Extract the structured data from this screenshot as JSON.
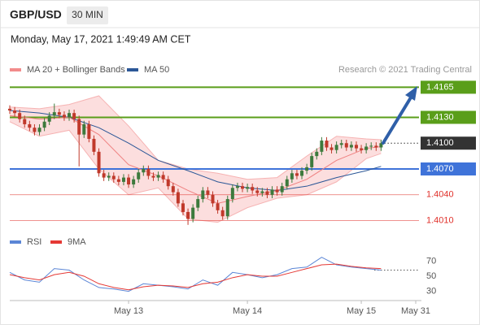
{
  "header": {
    "symbol": "GBP/USD",
    "timeframe": "30 MIN",
    "timestamp": "Monday, May 17, 2021 1:49:49 AM CET",
    "credit": "Research © 2021 Trading Central"
  },
  "chart_data": [
    {
      "type": "candlestick",
      "legend": [
        {
          "label": "MA 20 + Bollinger Bands",
          "color": "#f28b8b"
        },
        {
          "label": "MA 50",
          "color": "#2b5797"
        }
      ],
      "up_color": "#3d7a3d",
      "down_color": "#c0392b",
      "xlim": [
        0,
        82
      ],
      "xticks": [
        {
          "value": 24,
          "label": "May 13"
        },
        {
          "value": 48,
          "label": "May 14"
        },
        {
          "value": 71,
          "label": "May 15"
        },
        {
          "value": 82,
          "label": "May 31"
        }
      ],
      "ylim": [
        1.4002,
        1.4172
      ],
      "open": [
        1.414,
        1.4138,
        1.4135,
        1.4128,
        1.4122,
        1.4118,
        1.4113,
        1.4118,
        1.4125,
        1.4132,
        1.4136,
        1.4133,
        1.413,
        1.4135,
        1.4128,
        1.411,
        1.4122,
        1.4105,
        1.409,
        1.4065,
        1.406,
        1.4062,
        1.4058,
        1.4055,
        1.406,
        1.4052,
        1.4058,
        1.4066,
        1.407,
        1.4062,
        1.406,
        1.4063,
        1.4058,
        1.405,
        1.4043,
        1.403,
        1.402,
        1.4012,
        1.4025,
        1.4035,
        1.4045,
        1.404,
        1.403,
        1.4022,
        1.4015,
        1.4035,
        1.4048,
        1.405,
        1.4047,
        1.4049,
        1.4045,
        1.4042,
        1.4044,
        1.404,
        1.4046,
        1.4043,
        1.405,
        1.4058,
        1.4065,
        1.4062,
        1.4068,
        1.4072,
        1.4085,
        1.409,
        1.4103,
        1.4095,
        1.4092,
        1.4098,
        1.41,
        1.4095,
        1.4098,
        1.4094,
        1.4092,
        1.4096,
        1.4097,
        1.4095
      ],
      "high": [
        1.4144,
        1.4142,
        1.4139,
        1.4132,
        1.4126,
        1.4122,
        1.4122,
        1.4129,
        1.4136,
        1.4146,
        1.414,
        1.4137,
        1.4139,
        1.4139,
        1.4132,
        1.4126,
        1.4126,
        1.4109,
        1.4094,
        1.4069,
        1.4066,
        1.4066,
        1.4062,
        1.4064,
        1.4064,
        1.4062,
        1.407,
        1.4074,
        1.4074,
        1.4066,
        1.4067,
        1.4067,
        1.4062,
        1.4054,
        1.4047,
        1.4034,
        1.4024,
        1.4029,
        1.4039,
        1.4049,
        1.4049,
        1.4044,
        1.4034,
        1.4026,
        1.4039,
        1.4052,
        1.4054,
        1.4054,
        1.4053,
        1.4053,
        1.4049,
        1.4048,
        1.4048,
        1.405,
        1.405,
        1.4054,
        1.4062,
        1.4069,
        1.4069,
        1.4072,
        1.4076,
        1.4089,
        1.4094,
        1.4107,
        1.4107,
        1.4099,
        1.4102,
        1.4104,
        1.4104,
        1.4102,
        1.4102,
        1.4098,
        1.41,
        1.4101,
        1.4101,
        1.4104
      ],
      "low": [
        1.4134,
        1.4131,
        1.4124,
        1.4118,
        1.4114,
        1.4109,
        1.4109,
        1.4114,
        1.4121,
        1.4128,
        1.4129,
        1.4126,
        1.4126,
        1.4124,
        1.4073,
        1.4106,
        1.4101,
        1.4086,
        1.4061,
        1.4056,
        1.4056,
        1.4054,
        1.4051,
        1.4051,
        1.4048,
        1.4048,
        1.4054,
        1.4062,
        1.4058,
        1.4056,
        1.4056,
        1.4054,
        1.4046,
        1.4039,
        1.4026,
        1.4016,
        1.4005,
        1.4008,
        1.4021,
        1.4031,
        1.4036,
        1.4026,
        1.4018,
        1.4011,
        1.4011,
        1.4031,
        1.4044,
        1.4043,
        1.4043,
        1.4041,
        1.4038,
        1.4038,
        1.4036,
        1.4036,
        1.4039,
        1.4039,
        1.4046,
        1.4054,
        1.4058,
        1.4058,
        1.4064,
        1.4068,
        1.4081,
        1.4086,
        1.4091,
        1.4088,
        1.4088,
        1.4094,
        1.4091,
        1.4091,
        1.409,
        1.4088,
        1.4088,
        1.4092,
        1.4091,
        1.4091
      ],
      "close": [
        1.4138,
        1.4135,
        1.4128,
        1.4122,
        1.4118,
        1.4113,
        1.4118,
        1.4125,
        1.4132,
        1.4136,
        1.4133,
        1.413,
        1.4135,
        1.4128,
        1.411,
        1.4122,
        1.4105,
        1.409,
        1.4065,
        1.406,
        1.4062,
        1.4058,
        1.4055,
        1.406,
        1.4052,
        1.4058,
        1.4066,
        1.407,
        1.4062,
        1.406,
        1.4063,
        1.4058,
        1.405,
        1.4043,
        1.403,
        1.402,
        1.4012,
        1.4025,
        1.4035,
        1.4045,
        1.404,
        1.403,
        1.4022,
        1.4015,
        1.4035,
        1.4048,
        1.405,
        1.4047,
        1.4049,
        1.4045,
        1.4042,
        1.4044,
        1.404,
        1.4046,
        1.4043,
        1.405,
        1.4058,
        1.4065,
        1.4062,
        1.4068,
        1.4072,
        1.4085,
        1.409,
        1.4103,
        1.4095,
        1.4092,
        1.4098,
        1.41,
        1.4095,
        1.4098,
        1.4094,
        1.4092,
        1.4096,
        1.4097,
        1.4095,
        1.41
      ],
      "bollinger": {
        "color": "#fcdede",
        "line_color": "#f6b3b3",
        "x": [
          0,
          6,
          12,
          18,
          24,
          30,
          36,
          42,
          48,
          54,
          60,
          66,
          72,
          75
        ],
        "upper": [
          1.4142,
          1.414,
          1.4145,
          1.4155,
          1.412,
          1.408,
          1.407,
          1.4065,
          1.4058,
          1.406,
          1.4085,
          1.4108,
          1.4105,
          1.4104
        ],
        "lower": [
          1.4125,
          1.4108,
          1.4115,
          1.407,
          1.404,
          1.4048,
          1.4012,
          1.4008,
          1.4025,
          1.4036,
          1.404,
          1.4055,
          1.4082,
          1.4088
        ]
      },
      "ma20": {
        "color": "#ef8080",
        "x": [
          0,
          6,
          12,
          18,
          24,
          30,
          36,
          42,
          48,
          54,
          60,
          66,
          72,
          75
        ],
        "values": [
          1.4132,
          1.4128,
          1.413,
          1.411,
          1.4075,
          1.4062,
          1.4045,
          1.403,
          1.4038,
          1.4045,
          1.4058,
          1.408,
          1.4094,
          1.4096
        ]
      },
      "ma50": {
        "color": "#2b5797",
        "x": [
          0,
          6,
          12,
          18,
          24,
          30,
          36,
          42,
          48,
          54,
          60,
          66,
          72,
          75
        ],
        "values": [
          1.4138,
          1.4135,
          1.413,
          1.4118,
          1.41,
          1.408,
          1.4068,
          1.4055,
          1.4048,
          1.4045,
          1.405,
          1.406,
          1.4068,
          1.4073
        ]
      },
      "levels": [
        {
          "value": 1.4165,
          "label": "1.4165",
          "color": "#5a9e1a",
          "line": "solid",
          "tag": "box"
        },
        {
          "value": 1.413,
          "label": "1.4130",
          "color": "#5a9e1a",
          "line": "solid",
          "tag": "box"
        },
        {
          "value": 1.41,
          "label": "1.4100",
          "color": "#333333",
          "line": "dotted",
          "tag": "box"
        },
        {
          "value": 1.407,
          "label": "1.4070",
          "color": "#3f73d9",
          "line": "solid",
          "tag": "box"
        },
        {
          "value": 1.404,
          "label": "1.4040",
          "color": "#e0302a",
          "line": "thin",
          "tag": "text"
        },
        {
          "value": 1.401,
          "label": "1.4010",
          "color": "#e0302a",
          "line": "thin",
          "tag": "text"
        }
      ]
    },
    {
      "type": "line",
      "ylim": [
        22,
        79
      ],
      "yticks": [
        30,
        50,
        70
      ],
      "series": [
        {
          "name": "RSI",
          "color": "#5b86d6",
          "x": [
            0,
            3,
            6,
            9,
            12,
            15,
            18,
            21,
            24,
            27,
            30,
            33,
            36,
            39,
            42,
            45,
            48,
            51,
            54,
            57,
            60,
            63,
            66,
            69,
            72,
            75
          ],
          "values": [
            55,
            45,
            42,
            60,
            58,
            45,
            35,
            33,
            30,
            40,
            38,
            36,
            33,
            45,
            38,
            55,
            52,
            48,
            52,
            60,
            62,
            75,
            65,
            62,
            60,
            58
          ]
        },
        {
          "name": "9MA",
          "color": "#e53935",
          "x": [
            0,
            3,
            6,
            9,
            12,
            15,
            18,
            21,
            24,
            27,
            30,
            33,
            36,
            39,
            42,
            45,
            48,
            51,
            54,
            57,
            60,
            63,
            66,
            69,
            72,
            75
          ],
          "values": [
            52,
            48,
            45,
            52,
            55,
            50,
            40,
            35,
            32,
            36,
            38,
            37,
            35,
            40,
            42,
            48,
            52,
            50,
            50,
            55,
            60,
            65,
            66,
            63,
            61,
            60
          ]
        }
      ]
    }
  ]
}
